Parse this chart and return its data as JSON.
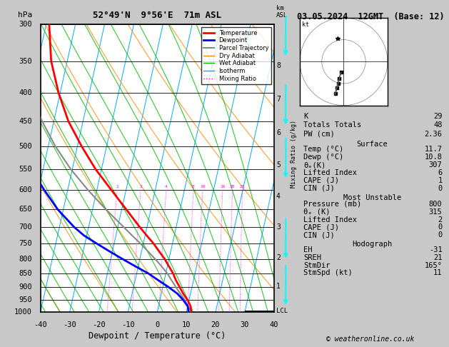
{
  "title_left": "52°49'N  9°56'E  71m ASL",
  "title_right": "03.05.2024  12GMT  (Base: 12)",
  "xlabel": "Dewpoint / Temperature (°C)",
  "pressure_levels": [
    300,
    350,
    400,
    450,
    500,
    550,
    600,
    650,
    700,
    750,
    800,
    850,
    900,
    950,
    1000
  ],
  "T_min": -40,
  "T_max": 40,
  "P_min": 300,
  "P_max": 1000,
  "skew_slope": 22.0,
  "bg_color": "#c8c8c8",
  "isotherm_color": "#00aaff",
  "dry_adiabat_color": "#ff8800",
  "wet_adiabat_color": "#00bb00",
  "mixing_ratio_color": "#ff00ff",
  "temp_color": "#ff0000",
  "dewp_color": "#0000ff",
  "parcel_color": "#888888",
  "legend_items": [
    {
      "label": "Temperature",
      "color": "#ff0000",
      "lw": 2,
      "ls": "solid"
    },
    {
      "label": "Dewpoint",
      "color": "#0000ff",
      "lw": 2,
      "ls": "solid"
    },
    {
      "label": "Parcel Trajectory",
      "color": "#888888",
      "lw": 1.5,
      "ls": "solid"
    },
    {
      "label": "Dry Adiabat",
      "color": "#ff8800",
      "lw": 1,
      "ls": "solid"
    },
    {
      "label": "Wet Adiabat",
      "color": "#00bb00",
      "lw": 1,
      "ls": "solid"
    },
    {
      "label": "Isotherm",
      "color": "#00aaff",
      "lw": 1,
      "ls": "solid"
    },
    {
      "label": "Mixing Ratio",
      "color": "#ff00ff",
      "lw": 1,
      "ls": "dotted"
    }
  ],
  "sounding_pressure": [
    1000,
    975,
    950,
    925,
    900,
    875,
    850,
    825,
    800,
    775,
    750,
    725,
    700,
    650,
    600,
    550,
    500,
    450,
    400,
    350,
    300
  ],
  "sounding_temp": [
    11.7,
    11.0,
    9.5,
    7.5,
    5.8,
    4.0,
    2.5,
    0.5,
    -1.5,
    -4.0,
    -6.5,
    -9.5,
    -12.5,
    -18.5,
    -25.0,
    -32.0,
    -38.5,
    -45.0,
    -50.5,
    -55.5,
    -59.0
  ],
  "sounding_dewp": [
    10.8,
    10.0,
    8.0,
    5.5,
    2.0,
    -2.0,
    -6.0,
    -11.0,
    -16.0,
    -21.0,
    -26.0,
    -31.0,
    -35.0,
    -42.0,
    -48.0,
    -54.0,
    -60.0,
    -65.0,
    -70.0,
    -74.0,
    -77.0
  ],
  "parcel_pressure": [
    1000,
    975,
    950,
    925,
    900,
    875,
    850,
    825,
    800,
    775,
    750,
    725,
    700,
    650,
    600,
    550,
    500,
    450,
    400,
    350,
    300
  ],
  "parcel_temp": [
    11.7,
    10.2,
    8.5,
    6.5,
    4.5,
    2.5,
    0.5,
    -2.0,
    -4.8,
    -7.8,
    -11.0,
    -14.5,
    -18.0,
    -25.5,
    -33.0,
    -40.5,
    -47.5,
    -54.0,
    -60.0,
    -65.5,
    -70.5
  ],
  "mixing_ratios": [
    1,
    2,
    4,
    8,
    10,
    16,
    20,
    25
  ],
  "mixing_ratio_labels": [
    "1",
    "2",
    "4",
    "8",
    "10",
    "16",
    "20",
    "25"
  ],
  "km_ticks": [
    1,
    2,
    3,
    4,
    5,
    6,
    7,
    8
  ],
  "km_pressures": [
    896,
    795,
    701,
    616,
    540,
    472,
    410,
    357
  ],
  "lcl_pressure": 995,
  "wind_pressures": [
    1000,
    925,
    850,
    700,
    500,
    400,
    300
  ],
  "wind_u": [
    -1.2,
    -2.1,
    -2.6,
    -3.1,
    -3.9,
    -5.2,
    -6.5
  ],
  "wind_v": [
    -4.9,
    -7.8,
    -9.9,
    -11.9,
    -14.7,
    -19.5,
    -24.3
  ],
  "hodo_u": [
    -1.2,
    -2.1,
    -2.6,
    -3.1,
    -3.9
  ],
  "hodo_v": [
    -4.9,
    -7.8,
    -9.9,
    -11.9,
    -14.7
  ],
  "K": 29,
  "TT": 48,
  "PW": 2.36,
  "surf_temp": 11.7,
  "surf_dewp": 10.8,
  "surf_thetae": 307,
  "surf_li": 6,
  "surf_cape": 1,
  "surf_cin": 0,
  "mu_pres": 800,
  "mu_thetae": 315,
  "mu_li": 2,
  "mu_cape": 0,
  "mu_cin": 0,
  "hodo_eh": -31,
  "hodo_sreh": 21,
  "hodo_stmdir": "165°",
  "hodo_stmspd": 11,
  "footer": "© weatheronline.co.uk"
}
